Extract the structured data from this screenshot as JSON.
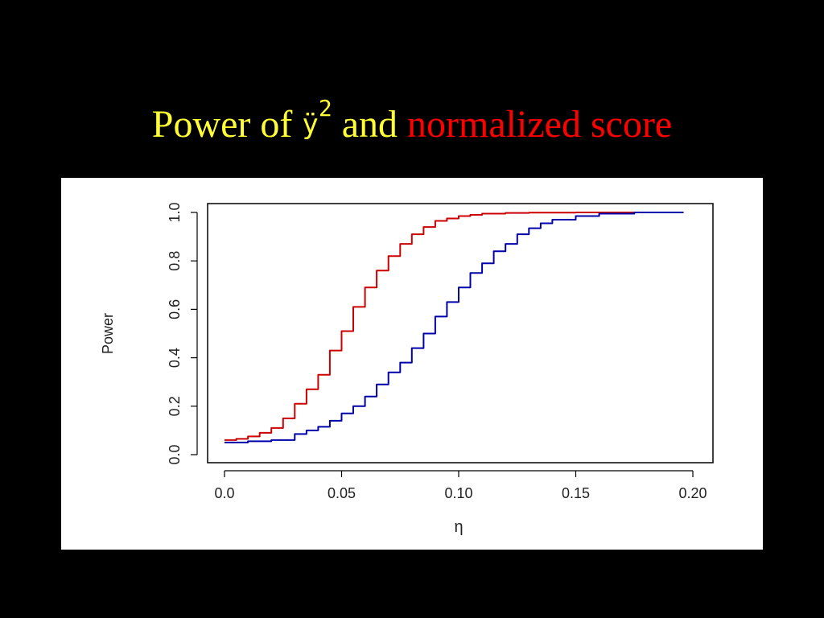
{
  "title": {
    "part1": "Power of ",
    "symbol": "ÿ",
    "superscript": "2",
    "part2": " and ",
    "part3": "normalized score",
    "color_main": "#ffff33",
    "color_accent": "#ff0000"
  },
  "chart_data": {
    "type": "line",
    "xlabel": "η",
    "ylabel": "Power",
    "xlim": [
      0.0,
      0.2
    ],
    "ylim": [
      0.0,
      1.0
    ],
    "x_ticks": [
      "0.0",
      "0.05",
      "0.10",
      "0.15",
      "0.20"
    ],
    "x_tick_values": [
      0.0,
      0.05,
      0.1,
      0.15,
      0.2
    ],
    "y_ticks": [
      "0.0",
      "0.2",
      "0.4",
      "0.6",
      "0.8",
      "1.0"
    ],
    "y_tick_values": [
      0.0,
      0.2,
      0.4,
      0.6,
      0.8,
      1.0
    ],
    "grid": false,
    "series": [
      {
        "color": "#cc0000",
        "x": [
          0.0,
          0.005,
          0.01,
          0.015,
          0.02,
          0.025,
          0.03,
          0.035,
          0.04,
          0.045,
          0.05,
          0.055,
          0.06,
          0.065,
          0.07,
          0.075,
          0.08,
          0.085,
          0.09,
          0.095,
          0.1,
          0.105,
          0.11,
          0.12,
          0.13,
          0.15,
          0.17,
          0.196
        ],
        "y": [
          0.06,
          0.065,
          0.075,
          0.09,
          0.11,
          0.15,
          0.21,
          0.27,
          0.33,
          0.43,
          0.51,
          0.61,
          0.69,
          0.76,
          0.82,
          0.87,
          0.91,
          0.94,
          0.965,
          0.975,
          0.985,
          0.99,
          0.995,
          0.998,
          0.999,
          1.0,
          1.0,
          1.0
        ]
      },
      {
        "color": "#0000aa",
        "x": [
          0.0,
          0.01,
          0.02,
          0.03,
          0.035,
          0.04,
          0.045,
          0.05,
          0.055,
          0.06,
          0.065,
          0.07,
          0.075,
          0.08,
          0.085,
          0.09,
          0.095,
          0.1,
          0.105,
          0.11,
          0.115,
          0.12,
          0.125,
          0.13,
          0.135,
          0.14,
          0.15,
          0.16,
          0.175,
          0.196
        ],
        "y": [
          0.05,
          0.055,
          0.06,
          0.085,
          0.1,
          0.115,
          0.14,
          0.17,
          0.2,
          0.24,
          0.29,
          0.34,
          0.38,
          0.44,
          0.5,
          0.57,
          0.63,
          0.69,
          0.75,
          0.79,
          0.84,
          0.87,
          0.91,
          0.935,
          0.955,
          0.97,
          0.985,
          0.995,
          1.0,
          1.0
        ]
      }
    ]
  }
}
